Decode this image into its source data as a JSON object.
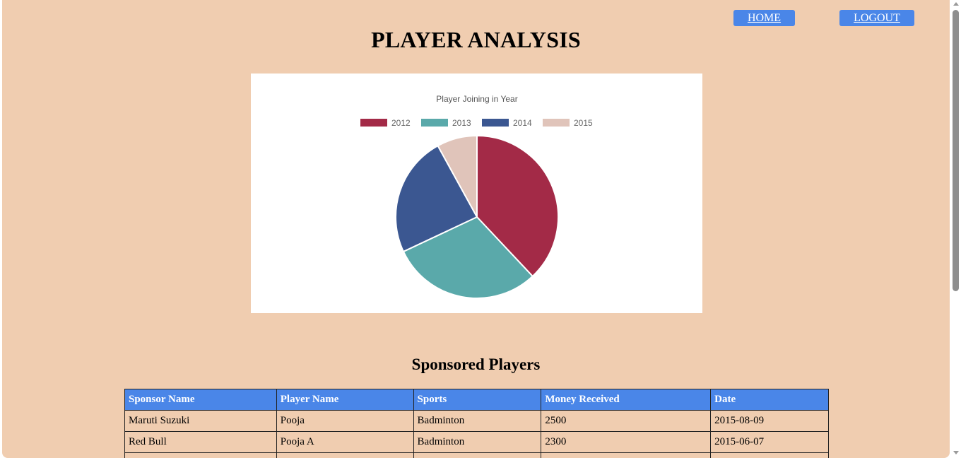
{
  "nav": {
    "home_label": "HOME",
    "logout_label": "LOGOUT"
  },
  "page_title": "PLAYER ANALYSIS",
  "chart_data": {
    "type": "pie",
    "title": "Player Joining in Year",
    "legend_position": "top",
    "categories": [
      "2012",
      "2013",
      "2014",
      "2015"
    ],
    "values": [
      38,
      30,
      24,
      8
    ],
    "colors": [
      "#a32a47",
      "#5aa9aa",
      "#3b5791",
      "#e0c4ba"
    ]
  },
  "sponsored": {
    "title": "Sponsored Players",
    "columns": [
      "Sponsor Name",
      "Player Name",
      "Sports",
      "Money Received",
      "Date"
    ],
    "rows": [
      [
        "Maruti Suzuki",
        "Pooja",
        "Badminton",
        "2500",
        "2015-08-09"
      ],
      [
        "Red Bull",
        "Pooja A",
        "Badminton",
        "2300",
        "2015-06-07"
      ],
      [
        "",
        "",
        "",
        "",
        ""
      ]
    ]
  },
  "colors": {
    "page_background": "#f0cdb0",
    "accent": "#4a86e8"
  }
}
